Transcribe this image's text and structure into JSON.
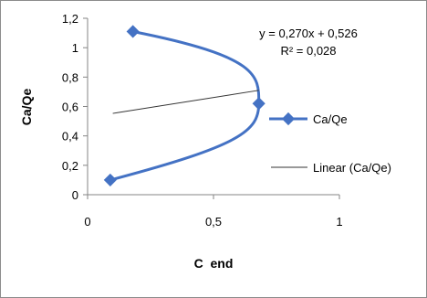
{
  "chart_data": {
    "type": "scatter",
    "xlabel": "C  end",
    "ylabel": "Ca/Qe",
    "xlim": [
      0,
      1
    ],
    "ylim": [
      0,
      1.2
    ],
    "x_ticks": [
      "0",
      "0,5",
      "1"
    ],
    "y_ticks": [
      "0",
      "0,2",
      "0,4",
      "0,6",
      "0,8",
      "1",
      "1,2"
    ],
    "grid": false,
    "legend_position": "right",
    "series": [
      {
        "name": "Ca/Qe",
        "style": "smooth line with diamond markers",
        "color": "#4472C4",
        "x": [
          0.18,
          0.68,
          0.09
        ],
        "y": [
          1.11,
          0.62,
          0.1
        ]
      },
      {
        "name": "Linear (Ca/Qe)",
        "style": "trendline",
        "color": "#333333",
        "x": [
          0.1,
          0.68
        ],
        "y": [
          0.553,
          0.71
        ]
      }
    ],
    "annotation": {
      "equation": "y = 0,270x + 0,526",
      "r_squared": "R² = 0,028"
    }
  }
}
